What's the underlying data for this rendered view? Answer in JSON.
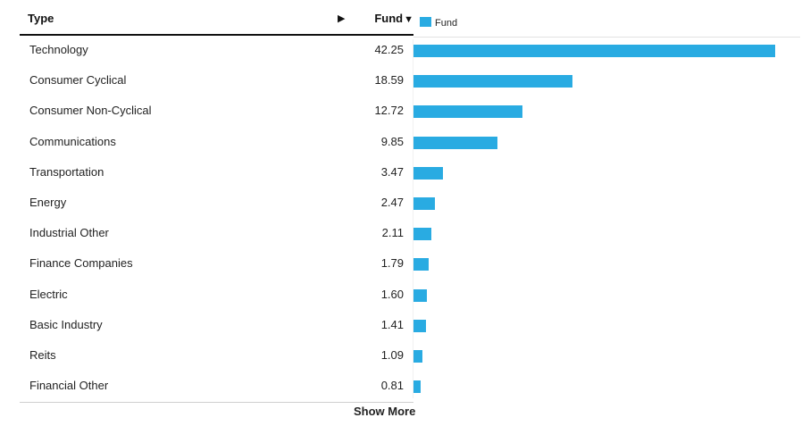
{
  "table": {
    "header_type": "Type",
    "header_expand_icon": "play-right-icon",
    "header_fund": "Fund",
    "header_sort_icon": "sort-down-icon"
  },
  "legend": {
    "label": "Fund",
    "color": "#29abe2"
  },
  "show_more": "Show More",
  "chart_data": {
    "type": "bar",
    "orientation": "horizontal",
    "categories": [
      "Technology",
      "Consumer Cyclical",
      "Consumer Non-Cyclical",
      "Communications",
      "Transportation",
      "Energy",
      "Industrial Other",
      "Finance Companies",
      "Electric",
      "Basic Industry",
      "Reits",
      "Financial Other"
    ],
    "value_labels": [
      "42.25",
      "18.59",
      "12.72",
      "9.85",
      "3.47",
      "2.47",
      "2.11",
      "1.79",
      "1.60",
      "1.41",
      "1.09",
      "0.81"
    ],
    "series": [
      {
        "name": "Fund",
        "color": "#29abe2",
        "values": [
          42.25,
          18.59,
          12.72,
          9.85,
          3.47,
          2.47,
          2.11,
          1.79,
          1.6,
          1.41,
          1.09,
          0.81
        ]
      }
    ],
    "xlim": [
      0,
      43.7
    ],
    "grid": false,
    "legend_position": "top-left"
  }
}
